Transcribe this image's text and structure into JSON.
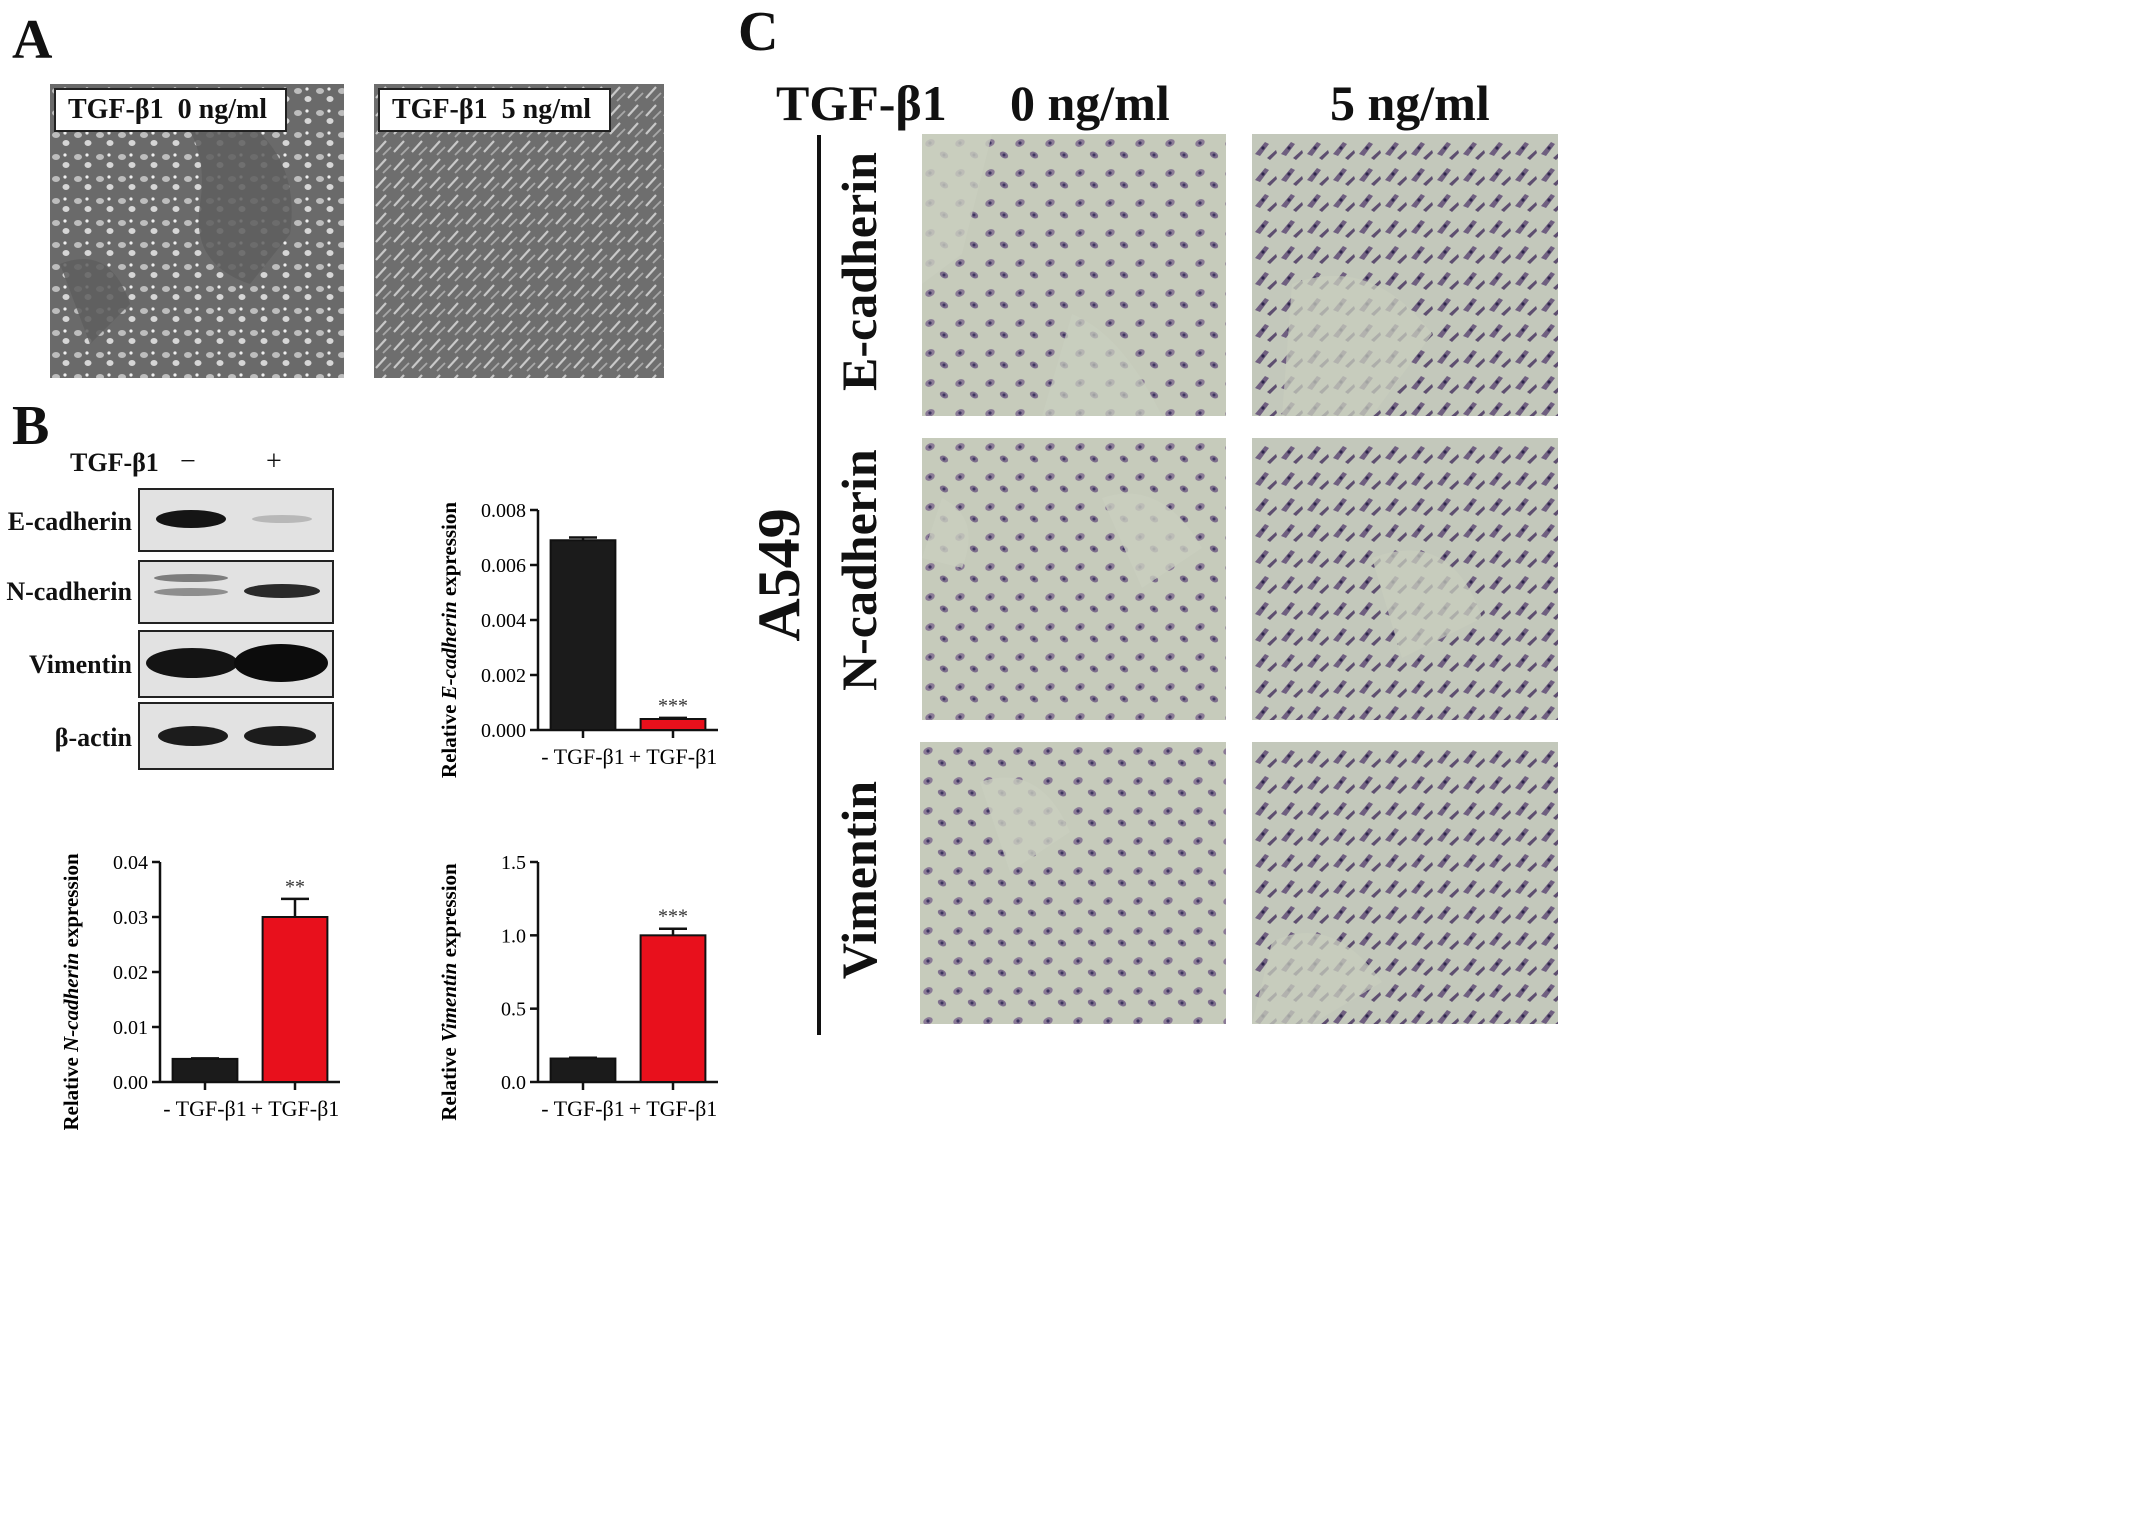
{
  "panels": {
    "A": {
      "letter": "A",
      "images": [
        {
          "label": "TGF-β1  0 ng/ml"
        },
        {
          "label": "TGF-β1  5 ng/ml"
        }
      ]
    },
    "B": {
      "letter": "B",
      "treatment_label": "TGF-β1",
      "lanes": [
        "−",
        "+"
      ],
      "blots": [
        {
          "protein": "E-cadherin"
        },
        {
          "protein": "N-cadherin"
        },
        {
          "protein": "Vimentin"
        },
        {
          "protein": "β-actin"
        }
      ]
    },
    "C": {
      "letter": "C",
      "treatment_label": "TGF-β1",
      "columns": [
        "0 ng/ml",
        "5 ng/ml"
      ],
      "cell_line": "A549",
      "rows": [
        "E-cadherin",
        "N-cadherin",
        "Vimentin"
      ]
    }
  },
  "colors": {
    "control": "#1b1b1b",
    "treated": "#e8101c"
  },
  "chart_data": [
    {
      "type": "bar",
      "categories": [
        "- TGF-β1",
        "+ TGF-β1"
      ],
      "values": [
        0.0069,
        0.0004
      ],
      "errors": [
        0.0001,
        4e-05
      ],
      "significance": [
        "",
        "***"
      ],
      "ylabel_pre": "Relative ",
      "ylabel_gene": "E-cadherin",
      "ylabel_post": " expression",
      "ylim": [
        0,
        0.008
      ],
      "yticks": [
        "0.000",
        "0.002",
        "0.004",
        "0.006",
        "0.008"
      ]
    },
    {
      "type": "bar",
      "categories": [
        "- TGF-β1",
        "+ TGF-β1"
      ],
      "values": [
        0.0042,
        0.03
      ],
      "errors": [
        0.0001,
        0.0033
      ],
      "significance": [
        "",
        "**"
      ],
      "ylabel_pre": "Relative ",
      "ylabel_gene": "N-cadherin",
      "ylabel_post": " expression",
      "ylim": [
        0,
        0.04
      ],
      "yticks": [
        "0.00",
        "0.01",
        "0.02",
        "0.03",
        "0.04"
      ]
    },
    {
      "type": "bar",
      "categories": [
        "- TGF-β1",
        "+ TGF-β1"
      ],
      "values": [
        0.16,
        1.0
      ],
      "errors": [
        0.005,
        0.045
      ],
      "significance": [
        "",
        "***"
      ],
      "ylabel_pre": "Relative ",
      "ylabel_gene": "Vimentin",
      "ylabel_post": " expression",
      "ylim": [
        0,
        1.5
      ],
      "yticks": [
        "0.0",
        "0.5",
        "1.0",
        "1.5"
      ]
    }
  ]
}
